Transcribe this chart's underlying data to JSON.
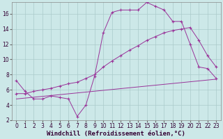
{
  "background_color": "#cce8e8",
  "grid_color": "#aacaca",
  "line_color": "#993399",
  "xlabel": "Windchill (Refroidissement éolien,°C)",
  "xlim": [
    -0.5,
    23.5
  ],
  "ylim": [
    2,
    17.5
  ],
  "xticks": [
    0,
    1,
    2,
    3,
    4,
    5,
    6,
    7,
    8,
    9,
    10,
    11,
    12,
    13,
    14,
    15,
    16,
    17,
    18,
    19,
    20,
    21,
    22,
    23
  ],
  "yticks": [
    2,
    4,
    6,
    8,
    10,
    12,
    14,
    16
  ],
  "series1_x": [
    0,
    1,
    2,
    3,
    4,
    5,
    6,
    7,
    8,
    9,
    10,
    11,
    12,
    13,
    14,
    15,
    16,
    17,
    18,
    19,
    20,
    21,
    22,
    23
  ],
  "series1_y": [
    7.2,
    5.8,
    4.8,
    4.8,
    5.2,
    5.0,
    4.8,
    2.5,
    4.0,
    7.8,
    13.5,
    16.2,
    16.5,
    16.5,
    16.5,
    17.5,
    17.0,
    16.5,
    15.0,
    15.0,
    12.0,
    9.0,
    8.8,
    7.5
  ],
  "series2_x": [
    0,
    1,
    2,
    3,
    4,
    5,
    6,
    7,
    8,
    9,
    10,
    11,
    12,
    13,
    14,
    15,
    16,
    17,
    18,
    19,
    20,
    21,
    22,
    23
  ],
  "series2_y": [
    5.5,
    5.5,
    5.8,
    6.0,
    6.2,
    6.5,
    6.8,
    7.0,
    7.5,
    8.0,
    9.0,
    9.8,
    10.5,
    11.2,
    11.8,
    12.5,
    13.0,
    13.5,
    13.8,
    14.0,
    14.2,
    12.5,
    10.5,
    9.0
  ],
  "series3_x": [
    0,
    23
  ],
  "series3_y": [
    4.8,
    7.4
  ],
  "axis_fontsize": 6.5,
  "tick_fontsize": 5.5
}
